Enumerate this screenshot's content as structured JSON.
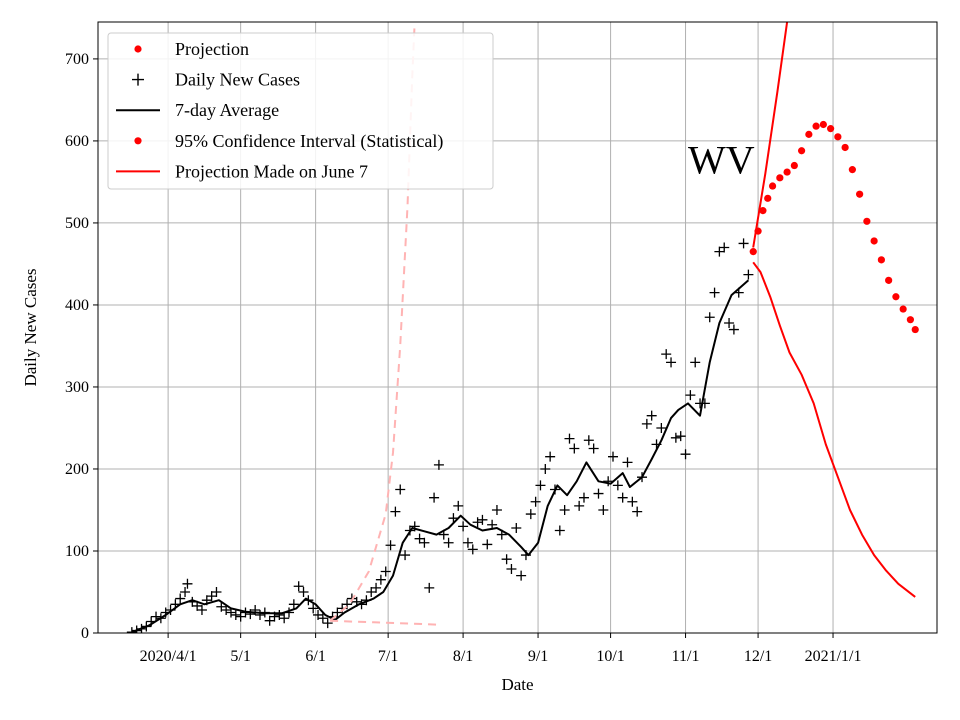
{
  "chart_data": {
    "type": "line",
    "title": "",
    "xlabel": "Date",
    "ylabel": "Daily New Cases",
    "xlim": [
      "2020-03-03",
      "2021-02-13"
    ],
    "ylim": [
      0,
      745
    ],
    "grid": true,
    "legend_placement": "top-left",
    "annotation": "WV",
    "x_ticks": [
      {
        "date": "2020-04-01",
        "label": "2020/4/1"
      },
      {
        "date": "2020-05-01",
        "label": "5/1"
      },
      {
        "date": "2020-06-01",
        "label": "6/1"
      },
      {
        "date": "2020-07-01",
        "label": "7/1"
      },
      {
        "date": "2020-08-01",
        "label": "8/1"
      },
      {
        "date": "2020-09-01",
        "label": "9/1"
      },
      {
        "date": "2020-10-01",
        "label": "10/1"
      },
      {
        "date": "2020-11-01",
        "label": "11/1"
      },
      {
        "date": "2020-12-01",
        "label": "12/1"
      },
      {
        "date": "2021-01-01",
        "label": "2021/1/1"
      }
    ],
    "y_ticks": [
      0,
      100,
      200,
      300,
      400,
      500,
      600,
      700
    ],
    "colors": {
      "projection": "#ff0000",
      "daily": "#000000",
      "average": "#000000",
      "interval": "#ff0000",
      "june7": "#ff0000",
      "june7_bounds": "#ffb3b3"
    },
    "legend": [
      {
        "label": "Projection",
        "marker": "dot",
        "color": "#ff0000"
      },
      {
        "label": "Daily New Cases",
        "marker": "plus",
        "color": "#000000"
      },
      {
        "label": "7-day Average",
        "marker": "line",
        "color": "#000000"
      },
      {
        "label": "95% Confidence Interval (Statistical)",
        "marker": "dot",
        "color": "#ff0000"
      },
      {
        "label": "Projection Made on June 7",
        "marker": "line",
        "color": "#ff0000"
      }
    ],
    "series": [
      {
        "name": "Daily New Cases",
        "kind": "scatter",
        "points": [
          [
            "2020-03-17",
            1
          ],
          [
            "2020-03-19",
            3
          ],
          [
            "2020-03-21",
            5
          ],
          [
            "2020-03-23",
            8
          ],
          [
            "2020-03-25",
            14
          ],
          [
            "2020-03-27",
            20
          ],
          [
            "2020-03-29",
            18
          ],
          [
            "2020-03-31",
            25
          ],
          [
            "2020-04-02",
            28
          ],
          [
            "2020-04-04",
            35
          ],
          [
            "2020-04-06",
            42
          ],
          [
            "2020-04-08",
            50
          ],
          [
            "2020-04-09",
            60
          ],
          [
            "2020-04-11",
            38
          ],
          [
            "2020-04-13",
            33
          ],
          [
            "2020-04-15",
            28
          ],
          [
            "2020-04-17",
            40
          ],
          [
            "2020-04-19",
            45
          ],
          [
            "2020-04-21",
            50
          ],
          [
            "2020-04-23",
            32
          ],
          [
            "2020-04-25",
            28
          ],
          [
            "2020-04-27",
            25
          ],
          [
            "2020-04-29",
            22
          ],
          [
            "2020-05-01",
            20
          ],
          [
            "2020-05-03",
            25
          ],
          [
            "2020-05-05",
            23
          ],
          [
            "2020-05-07",
            28
          ],
          [
            "2020-05-09",
            22
          ],
          [
            "2020-05-11",
            25
          ],
          [
            "2020-05-13",
            15
          ],
          [
            "2020-05-15",
            20
          ],
          [
            "2020-05-17",
            22
          ],
          [
            "2020-05-19",
            18
          ],
          [
            "2020-05-21",
            25
          ],
          [
            "2020-05-23",
            35
          ],
          [
            "2020-05-25",
            57
          ],
          [
            "2020-05-27",
            50
          ],
          [
            "2020-05-29",
            40
          ],
          [
            "2020-05-31",
            30
          ],
          [
            "2020-06-02",
            22
          ],
          [
            "2020-06-04",
            18
          ],
          [
            "2020-06-06",
            12
          ],
          [
            "2020-06-08",
            20
          ],
          [
            "2020-06-10",
            25
          ],
          [
            "2020-06-12",
            30
          ],
          [
            "2020-06-14",
            35
          ],
          [
            "2020-06-16",
            42
          ],
          [
            "2020-06-18",
            38
          ],
          [
            "2020-06-20",
            35
          ],
          [
            "2020-06-22",
            40
          ],
          [
            "2020-06-24",
            50
          ],
          [
            "2020-06-26",
            55
          ],
          [
            "2020-06-28",
            65
          ],
          [
            "2020-06-30",
            75
          ],
          [
            "2020-07-02",
            107
          ],
          [
            "2020-07-04",
            148
          ],
          [
            "2020-07-06",
            175
          ],
          [
            "2020-07-08",
            95
          ],
          [
            "2020-07-10",
            125
          ],
          [
            "2020-07-12",
            130
          ],
          [
            "2020-07-14",
            115
          ],
          [
            "2020-07-16",
            110
          ],
          [
            "2020-07-18",
            55
          ],
          [
            "2020-07-20",
            165
          ],
          [
            "2020-07-22",
            205
          ],
          [
            "2020-07-24",
            120
          ],
          [
            "2020-07-26",
            110
          ],
          [
            "2020-07-28",
            140
          ],
          [
            "2020-07-30",
            155
          ],
          [
            "2020-08-01",
            130
          ],
          [
            "2020-08-03",
            110
          ],
          [
            "2020-08-05",
            102
          ],
          [
            "2020-08-07",
            135
          ],
          [
            "2020-08-09",
            138
          ],
          [
            "2020-08-11",
            108
          ],
          [
            "2020-08-13",
            132
          ],
          [
            "2020-08-15",
            150
          ],
          [
            "2020-08-17",
            120
          ],
          [
            "2020-08-19",
            90
          ],
          [
            "2020-08-21",
            78
          ],
          [
            "2020-08-23",
            128
          ],
          [
            "2020-08-25",
            70
          ],
          [
            "2020-08-27",
            95
          ],
          [
            "2020-08-29",
            145
          ],
          [
            "2020-08-31",
            160
          ],
          [
            "2020-09-02",
            180
          ],
          [
            "2020-09-04",
            200
          ],
          [
            "2020-09-06",
            215
          ],
          [
            "2020-09-08",
            175
          ],
          [
            "2020-09-10",
            125
          ],
          [
            "2020-09-12",
            150
          ],
          [
            "2020-09-14",
            237
          ],
          [
            "2020-09-16",
            225
          ],
          [
            "2020-09-18",
            155
          ],
          [
            "2020-09-20",
            165
          ],
          [
            "2020-09-22",
            235
          ],
          [
            "2020-09-24",
            225
          ],
          [
            "2020-09-26",
            170
          ],
          [
            "2020-09-28",
            150
          ],
          [
            "2020-09-30",
            185
          ],
          [
            "2020-10-02",
            215
          ],
          [
            "2020-10-04",
            180
          ],
          [
            "2020-10-06",
            165
          ],
          [
            "2020-10-08",
            208
          ],
          [
            "2020-10-10",
            160
          ],
          [
            "2020-10-12",
            148
          ],
          [
            "2020-10-14",
            190
          ],
          [
            "2020-10-16",
            255
          ],
          [
            "2020-10-18",
            265
          ],
          [
            "2020-10-20",
            230
          ],
          [
            "2020-10-22",
            250
          ],
          [
            "2020-10-24",
            340
          ],
          [
            "2020-10-26",
            330
          ],
          [
            "2020-10-28",
            238
          ],
          [
            "2020-10-30",
            240
          ],
          [
            "2020-11-01",
            218
          ],
          [
            "2020-11-03",
            290
          ],
          [
            "2020-11-05",
            330
          ],
          [
            "2020-11-07",
            280
          ],
          [
            "2020-11-09",
            280
          ],
          [
            "2020-11-11",
            385
          ],
          [
            "2020-11-13",
            415
          ],
          [
            "2020-11-15",
            465
          ],
          [
            "2020-11-17",
            470
          ],
          [
            "2020-11-19",
            378
          ],
          [
            "2020-11-21",
            370
          ],
          [
            "2020-11-23",
            415
          ],
          [
            "2020-11-25",
            475
          ],
          [
            "2020-11-27",
            437
          ]
        ]
      },
      {
        "name": "7-day Average",
        "kind": "line",
        "points": [
          [
            "2020-03-17",
            1
          ],
          [
            "2020-03-24",
            9
          ],
          [
            "2020-03-31",
            22
          ],
          [
            "2020-04-06",
            35
          ],
          [
            "2020-04-11",
            40
          ],
          [
            "2020-04-16",
            35
          ],
          [
            "2020-04-22",
            40
          ],
          [
            "2020-04-27",
            30
          ],
          [
            "2020-05-03",
            26
          ],
          [
            "2020-05-11",
            24
          ],
          [
            "2020-05-18",
            24
          ],
          [
            "2020-05-24",
            30
          ],
          [
            "2020-05-28",
            42
          ],
          [
            "2020-06-01",
            35
          ],
          [
            "2020-06-05",
            22
          ],
          [
            "2020-06-09",
            16
          ],
          [
            "2020-06-13",
            25
          ],
          [
            "2020-06-19",
            35
          ],
          [
            "2020-06-25",
            42
          ],
          [
            "2020-06-29",
            50
          ],
          [
            "2020-07-03",
            70
          ],
          [
            "2020-07-07",
            110
          ],
          [
            "2020-07-11",
            128
          ],
          [
            "2020-07-16",
            124
          ],
          [
            "2020-07-21",
            120
          ],
          [
            "2020-07-26",
            128
          ],
          [
            "2020-07-31",
            143
          ],
          [
            "2020-08-04",
            132
          ],
          [
            "2020-08-09",
            125
          ],
          [
            "2020-08-15",
            128
          ],
          [
            "2020-08-20",
            120
          ],
          [
            "2020-08-25",
            105
          ],
          [
            "2020-08-28",
            95
          ],
          [
            "2020-09-01",
            110
          ],
          [
            "2020-09-05",
            155
          ],
          [
            "2020-09-09",
            180
          ],
          [
            "2020-09-13",
            168
          ],
          [
            "2020-09-17",
            185
          ],
          [
            "2020-09-21",
            208
          ],
          [
            "2020-09-26",
            185
          ],
          [
            "2020-10-01",
            182
          ],
          [
            "2020-10-06",
            195
          ],
          [
            "2020-10-09",
            178
          ],
          [
            "2020-10-14",
            190
          ],
          [
            "2020-10-18",
            212
          ],
          [
            "2020-10-22",
            235
          ],
          [
            "2020-10-26",
            262
          ],
          [
            "2020-10-29",
            272
          ],
          [
            "2020-11-02",
            280
          ],
          [
            "2020-11-07",
            265
          ],
          [
            "2020-11-11",
            330
          ],
          [
            "2020-11-15",
            378
          ],
          [
            "2020-11-20",
            412
          ],
          [
            "2020-11-27",
            430
          ]
        ]
      },
      {
        "name": "Projection",
        "kind": "dots",
        "points": [
          [
            "2020-11-29",
            465
          ],
          [
            "2020-12-01",
            490
          ],
          [
            "2020-12-03",
            515
          ],
          [
            "2020-12-05",
            530
          ],
          [
            "2020-12-07",
            545
          ],
          [
            "2020-12-10",
            555
          ],
          [
            "2020-12-13",
            562
          ],
          [
            "2020-12-16",
            570
          ],
          [
            "2020-12-19",
            588
          ],
          [
            "2020-12-22",
            608
          ],
          [
            "2020-12-25",
            618
          ],
          [
            "2020-12-28",
            620
          ],
          [
            "2020-12-31",
            615
          ],
          [
            "2021-01-03",
            605
          ],
          [
            "2021-01-06",
            592
          ],
          [
            "2021-01-09",
            565
          ],
          [
            "2021-01-12",
            535
          ],
          [
            "2021-01-15",
            502
          ],
          [
            "2021-01-18",
            478
          ],
          [
            "2021-01-21",
            455
          ],
          [
            "2021-01-24",
            430
          ],
          [
            "2021-01-27",
            410
          ],
          [
            "2021-01-30",
            395
          ],
          [
            "2021-02-02",
            382
          ],
          [
            "2021-02-04",
            370
          ]
        ]
      },
      {
        "name": "Projection Made on June 7",
        "kind": "line",
        "points": [
          [
            "2020-11-29",
            452
          ],
          [
            "2020-12-02",
            440
          ],
          [
            "2020-12-06",
            410
          ],
          [
            "2020-12-10",
            375
          ],
          [
            "2020-12-14",
            342
          ],
          [
            "2020-12-19",
            315
          ],
          [
            "2020-12-24",
            280
          ],
          [
            "2020-12-29",
            230
          ],
          [
            "2021-01-03",
            190
          ],
          [
            "2021-01-08",
            150
          ],
          [
            "2021-01-13",
            120
          ],
          [
            "2021-01-18",
            95
          ],
          [
            "2021-01-23",
            76
          ],
          [
            "2021-01-28",
            60
          ],
          [
            "2021-02-04",
            44
          ]
        ]
      },
      {
        "kind": "line",
        "points": [
          [
            "2020-11-29",
            470
          ],
          [
            "2020-12-04",
            560
          ],
          [
            "2020-12-09",
            660
          ],
          [
            "2020-12-13",
            745
          ]
        ]
      },
      {
        "kind": "dashed",
        "points": [
          [
            "2020-06-07",
            15
          ],
          [
            "2020-06-15",
            35
          ],
          [
            "2020-06-23",
            75
          ],
          [
            "2020-06-30",
            145
          ],
          [
            "2020-07-03",
            220
          ],
          [
            "2020-07-06",
            350
          ],
          [
            "2020-07-09",
            520
          ],
          [
            "2020-07-11",
            680
          ],
          [
            "2020-07-12",
            745
          ]
        ]
      },
      {
        "kind": "dashed",
        "points": [
          [
            "2020-06-07",
            15
          ],
          [
            "2020-06-15",
            14
          ],
          [
            "2020-06-25",
            13
          ],
          [
            "2020-07-05",
            12
          ],
          [
            "2020-07-15",
            11
          ],
          [
            "2020-07-23",
            10
          ]
        ]
      }
    ]
  }
}
